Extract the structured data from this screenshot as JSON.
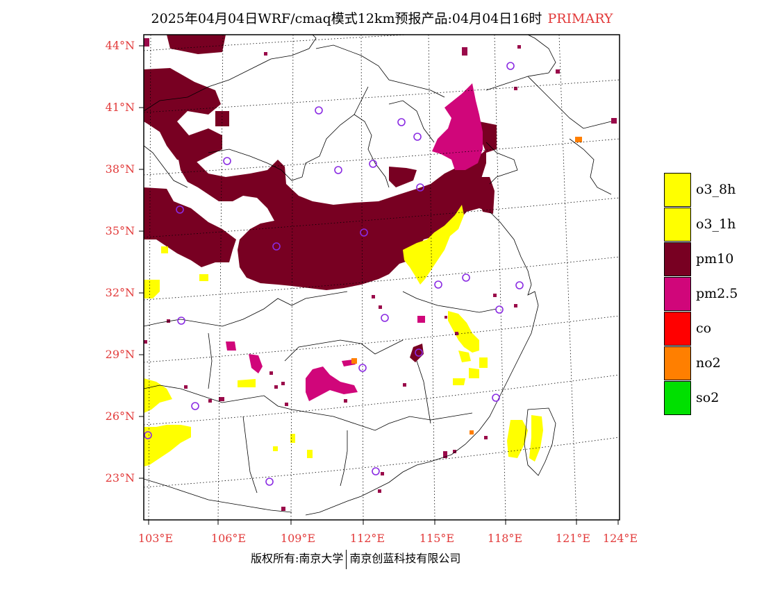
{
  "title": {
    "main": "2025年04月04日WRF/cmaq模式12km预报产品:04月04日16时",
    "tag": "PRIMARY"
  },
  "axes": {
    "lat_labels": [
      "44°N",
      "41°N",
      "38°N",
      "35°N",
      "32°N",
      "29°N",
      "26°N",
      "23°N"
    ],
    "lon_labels": [
      "103°E",
      "106°E",
      "109°E",
      "112°E",
      "115°E",
      "118°E",
      "121°E",
      "124°E"
    ]
  },
  "legend": {
    "items": [
      {
        "label": "o3_8h",
        "color": "#ffff00"
      },
      {
        "label": "o3_1h",
        "color": "#ffff00"
      },
      {
        "label": "pm10",
        "color": "#780022"
      },
      {
        "label": "pm2.5",
        "color": "#d0067a"
      },
      {
        "label": "co",
        "color": "#ff0000"
      },
      {
        "label": "no2",
        "color": "#ff7f00"
      },
      {
        "label": "so2",
        "color": "#00e000"
      }
    ]
  },
  "footer": {
    "left": "版权所有:南京大学",
    "right": "南京创蓝科技有限公司"
  },
  "colors": {
    "label_red": "#e23a3a",
    "station_marker": "#8a2be2"
  }
}
